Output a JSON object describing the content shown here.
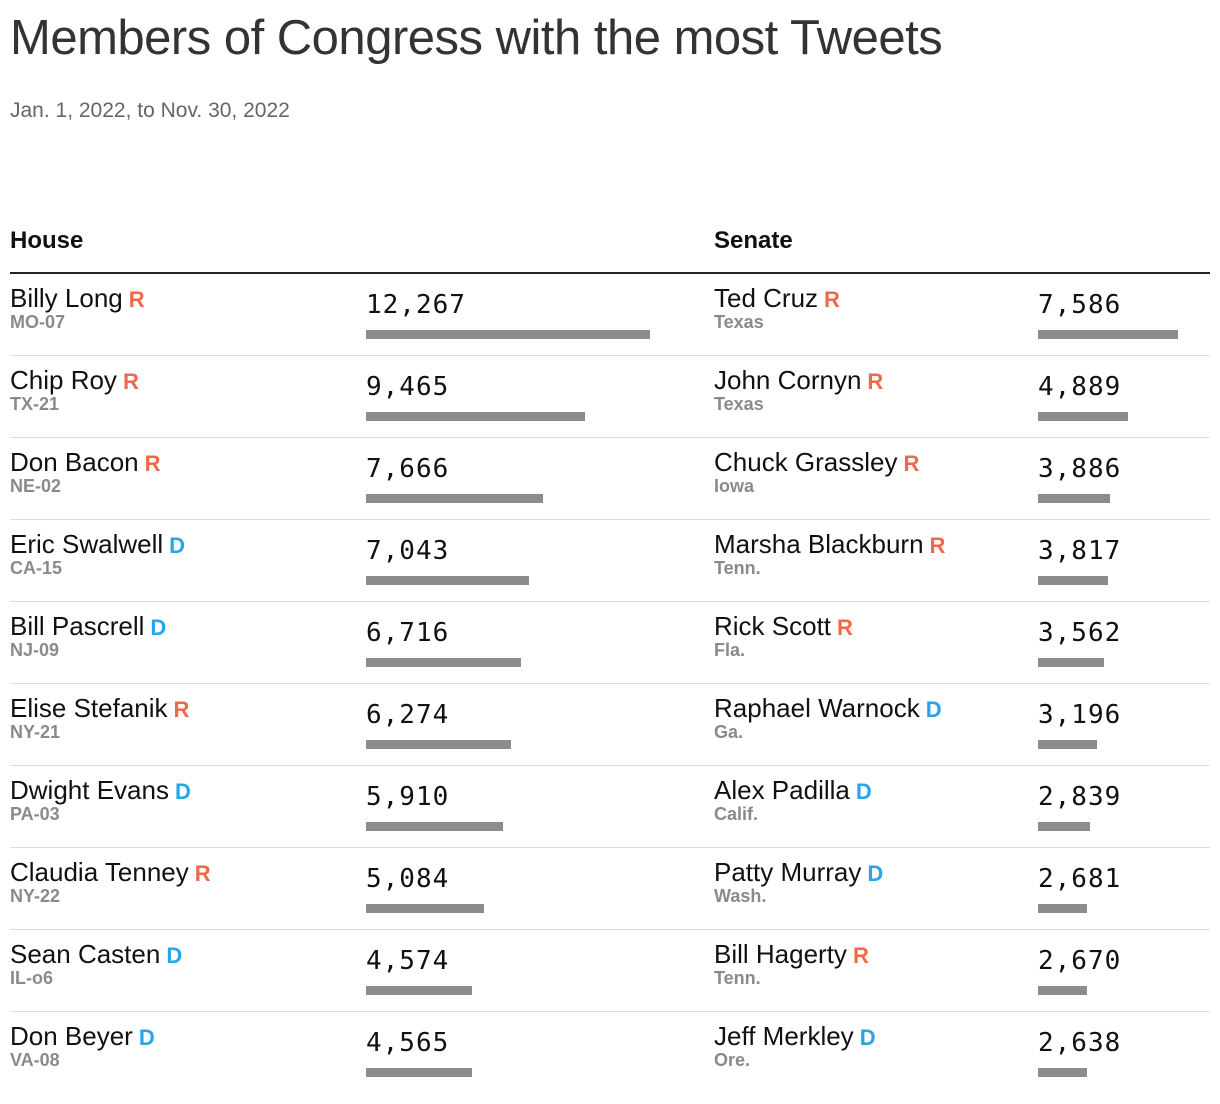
{
  "title": "Members of Congress with the most Tweets",
  "subtitle": "Jan. 1, 2022, to Nov. 30, 2022",
  "colors": {
    "R": "#ee6a4b",
    "D": "#2aa3e8",
    "bar": "#8c8c8c"
  },
  "chart_data": [
    {
      "type": "bar",
      "title": "House",
      "categories": [
        "Billy Long",
        "Chip Roy",
        "Don Bacon",
        "Eric Swalwell",
        "Bill Pascrell",
        "Elise Stefanik",
        "Dwight Evans",
        "Claudia Tenney",
        "Sean Casten",
        "Don Beyer"
      ],
      "values": [
        12267,
        9465,
        7666,
        7043,
        6716,
        6274,
        5910,
        5084,
        4574,
        4565
      ],
      "rows": [
        {
          "name": "Billy Long",
          "party": "R",
          "district": "MO-07",
          "label": "12,267",
          "value": 12267
        },
        {
          "name": "Chip Roy",
          "party": "R",
          "district": "TX-21",
          "label": "9,465",
          "value": 9465
        },
        {
          "name": "Don Bacon",
          "party": "R",
          "district": "NE-02",
          "label": "7,666",
          "value": 7666
        },
        {
          "name": "Eric Swalwell",
          "party": "D",
          "district": "CA-15",
          "label": "7,043",
          "value": 7043
        },
        {
          "name": "Bill Pascrell",
          "party": "D",
          "district": "NJ-09",
          "label": "6,716",
          "value": 6716
        },
        {
          "name": "Elise Stefanik",
          "party": "R",
          "district": "NY-21",
          "label": "6,274",
          "value": 6274
        },
        {
          "name": "Dwight Evans",
          "party": "D",
          "district": "PA-03",
          "label": "5,910",
          "value": 5910
        },
        {
          "name": "Claudia Tenney",
          "party": "R",
          "district": "NY-22",
          "label": "5,084",
          "value": 5084
        },
        {
          "name": "Sean Casten",
          "party": "D",
          "district": "IL-o6",
          "label": "4,574",
          "value": 4574
        },
        {
          "name": "Don Beyer",
          "party": "D",
          "district": "VA-08",
          "label": "4,565",
          "value": 4565
        }
      ]
    },
    {
      "type": "bar",
      "title": "Senate",
      "categories": [
        "Ted Cruz",
        "John Cornyn",
        "Chuck Grassley",
        "Marsha Blackburn",
        "Rick Scott",
        "Raphael Warnock",
        "Alex Padilla",
        "Patty Murray",
        "Bill Hagerty",
        "Jeff Merkley"
      ],
      "values": [
        7586,
        4889,
        3886,
        3817,
        3562,
        3196,
        2839,
        2681,
        2670,
        2638
      ],
      "rows": [
        {
          "name": "Ted Cruz",
          "party": "R",
          "district": "Texas",
          "label": "7,586",
          "value": 7586
        },
        {
          "name": "John Cornyn",
          "party": "R",
          "district": "Texas",
          "label": "4,889",
          "value": 4889
        },
        {
          "name": "Chuck Grassley",
          "party": "R",
          "district": "Iowa",
          "label": "3,886",
          "value": 3886
        },
        {
          "name": "Marsha Blackburn",
          "party": "R",
          "district": "Tenn.",
          "label": "3,817",
          "value": 3817
        },
        {
          "name": "Rick Scott",
          "party": "R",
          "district": "Fla.",
          "label": "3,562",
          "value": 3562
        },
        {
          "name": "Raphael Warnock",
          "party": "D",
          "district": "Ga.",
          "label": "3,196",
          "value": 3196
        },
        {
          "name": "Alex Padilla",
          "party": "D",
          "district": "Calif.",
          "label": "2,839",
          "value": 2839
        },
        {
          "name": "Patty Murray",
          "party": "D",
          "district": "Wash.",
          "label": "2,681",
          "value": 2681
        },
        {
          "name": "Bill Hagerty",
          "party": "R",
          "district": "Tenn.",
          "label": "2,670",
          "value": 2670
        },
        {
          "name": "Jeff Merkley",
          "party": "D",
          "district": "Ore.",
          "label": "2,638",
          "value": 2638
        }
      ]
    }
  ]
}
